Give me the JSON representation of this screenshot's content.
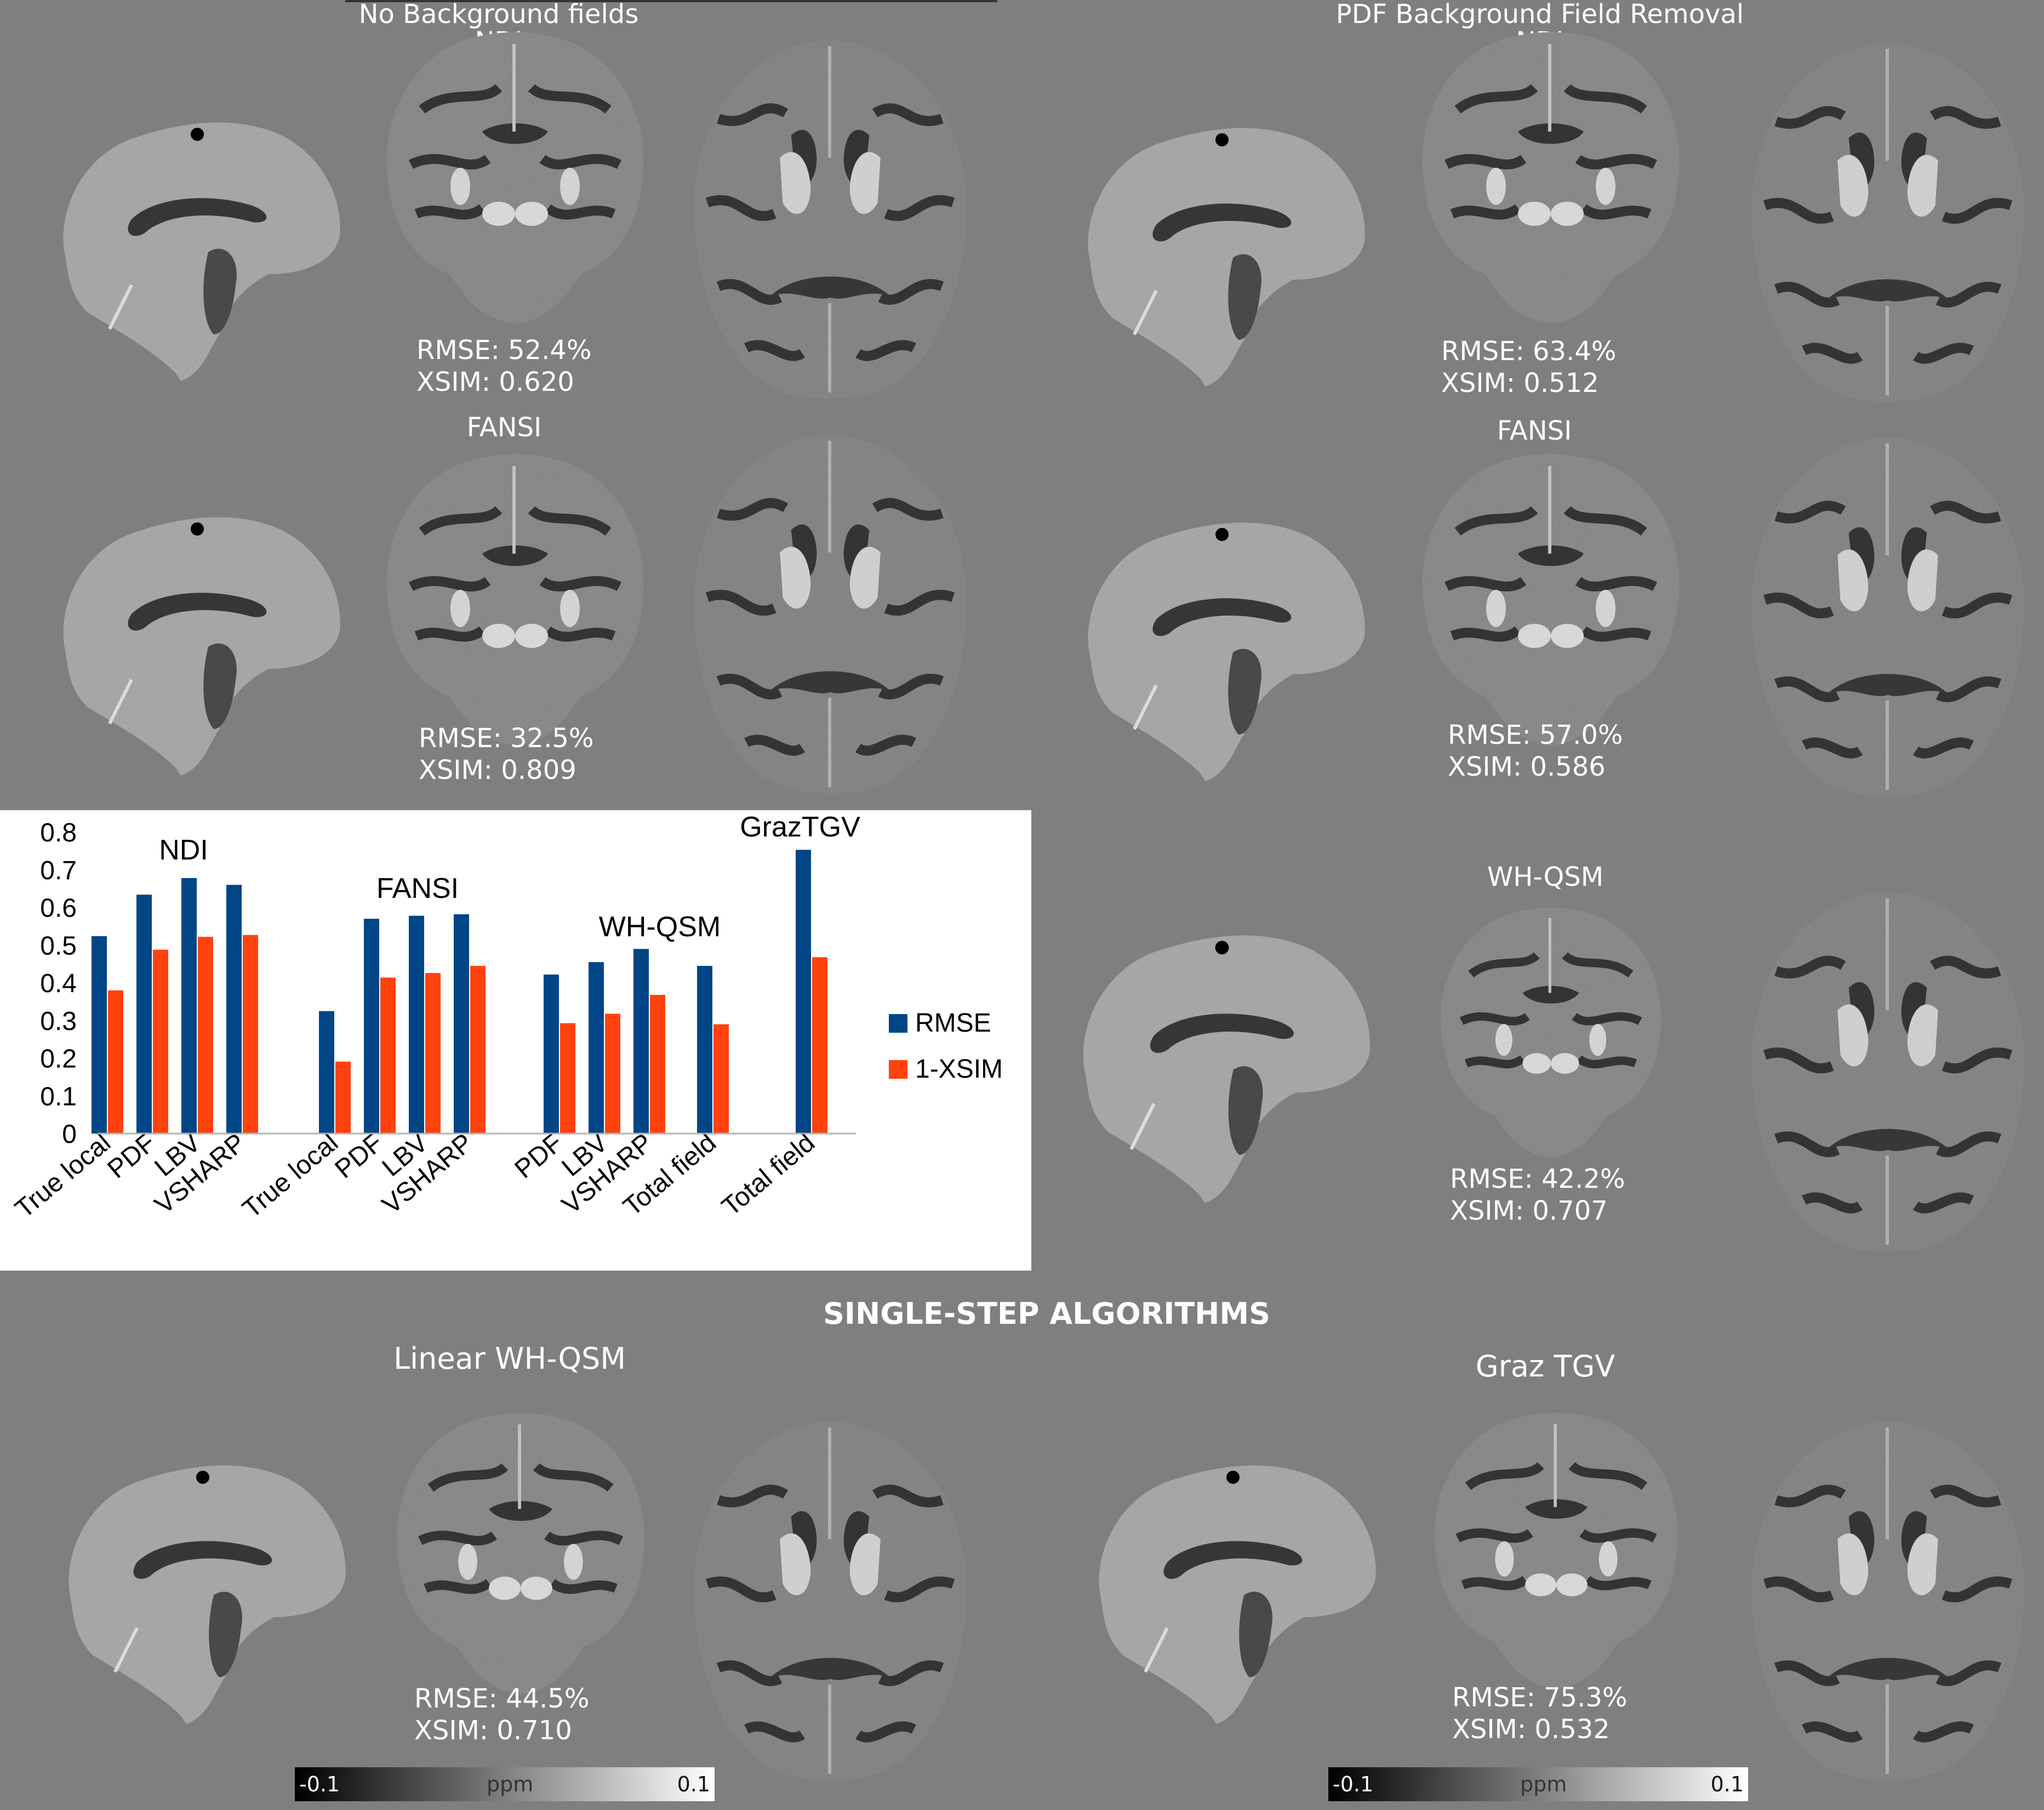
{
  "headers": {
    "left": [
      "No Background fields",
      "NDI"
    ],
    "right": [
      "PDF Background Field Removal",
      "NDI"
    ]
  },
  "panels": [
    {
      "id": "ndi-left",
      "title": "",
      "rmse": "RMSE: 52.4%",
      "xsim": "XSIM: 0.620"
    },
    {
      "id": "ndi-right",
      "title": "",
      "rmse": "RMSE: 63.4%",
      "xsim": "XSIM: 0.512"
    },
    {
      "id": "fansi-left",
      "title": "FANSI",
      "rmse": "RMSE: 32.5%",
      "xsim": "XSIM: 0.809"
    },
    {
      "id": "fansi-right",
      "title": "FANSI",
      "rmse": "RMSE: 57.0%",
      "xsim": "XSIM: 0.586"
    },
    {
      "id": "whqsm-right",
      "title": "WH-QSM",
      "rmse": "RMSE: 42.2%",
      "xsim": "XSIM: 0.707"
    },
    {
      "id": "linear-left",
      "title": "Linear WH-QSM",
      "rmse": "RMSE: 44.5%",
      "xsim": "XSIM: 0.710"
    },
    {
      "id": "graz-right",
      "title": "Graz TGV",
      "rmse": "RMSE: 75.3%",
      "xsim": "XSIM: 0.532"
    }
  ],
  "section_title": "SINGLE-STEP ALGORITHMS",
  "colorbar": {
    "min": "-0.1",
    "unit": "ppm",
    "max": "0.1"
  },
  "chart_data": {
    "type": "bar",
    "categories": [
      "True local",
      "PDF",
      "LBV",
      "VSHARP",
      "True local",
      "PDF",
      "LBV",
      "VSHARP",
      "PDF",
      "LBV",
      "VSHARP",
      "Total field",
      "Total field"
    ],
    "groups": [
      {
        "name": "NDI",
        "indices": [
          0,
          1,
          2,
          3
        ]
      },
      {
        "name": "FANSI",
        "indices": [
          4,
          5,
          6,
          7
        ]
      },
      {
        "name": "WH-QSM",
        "indices": [
          8,
          9,
          10,
          11
        ]
      },
      {
        "name": "GrazTGV",
        "indices": [
          12
        ]
      }
    ],
    "series": [
      {
        "name": "RMSE",
        "color": "#004586",
        "values": [
          0.524,
          0.634,
          0.678,
          0.66,
          0.325,
          0.57,
          0.578,
          0.582,
          0.422,
          0.455,
          0.49,
          0.445,
          0.753
        ]
      },
      {
        "name": "1-XSIM",
        "color": "#ff420e",
        "values": [
          0.38,
          0.488,
          0.522,
          0.527,
          0.191,
          0.414,
          0.426,
          0.445,
          0.293,
          0.318,
          0.368,
          0.29,
          0.468
        ]
      }
    ],
    "ylim": [
      0,
      0.8
    ],
    "yticks": [
      "0",
      "0.1",
      "0.2",
      "0.3",
      "0.4",
      "0.5",
      "0.6",
      "0.7",
      "0.8"
    ],
    "legend": "right",
    "grid": false
  }
}
